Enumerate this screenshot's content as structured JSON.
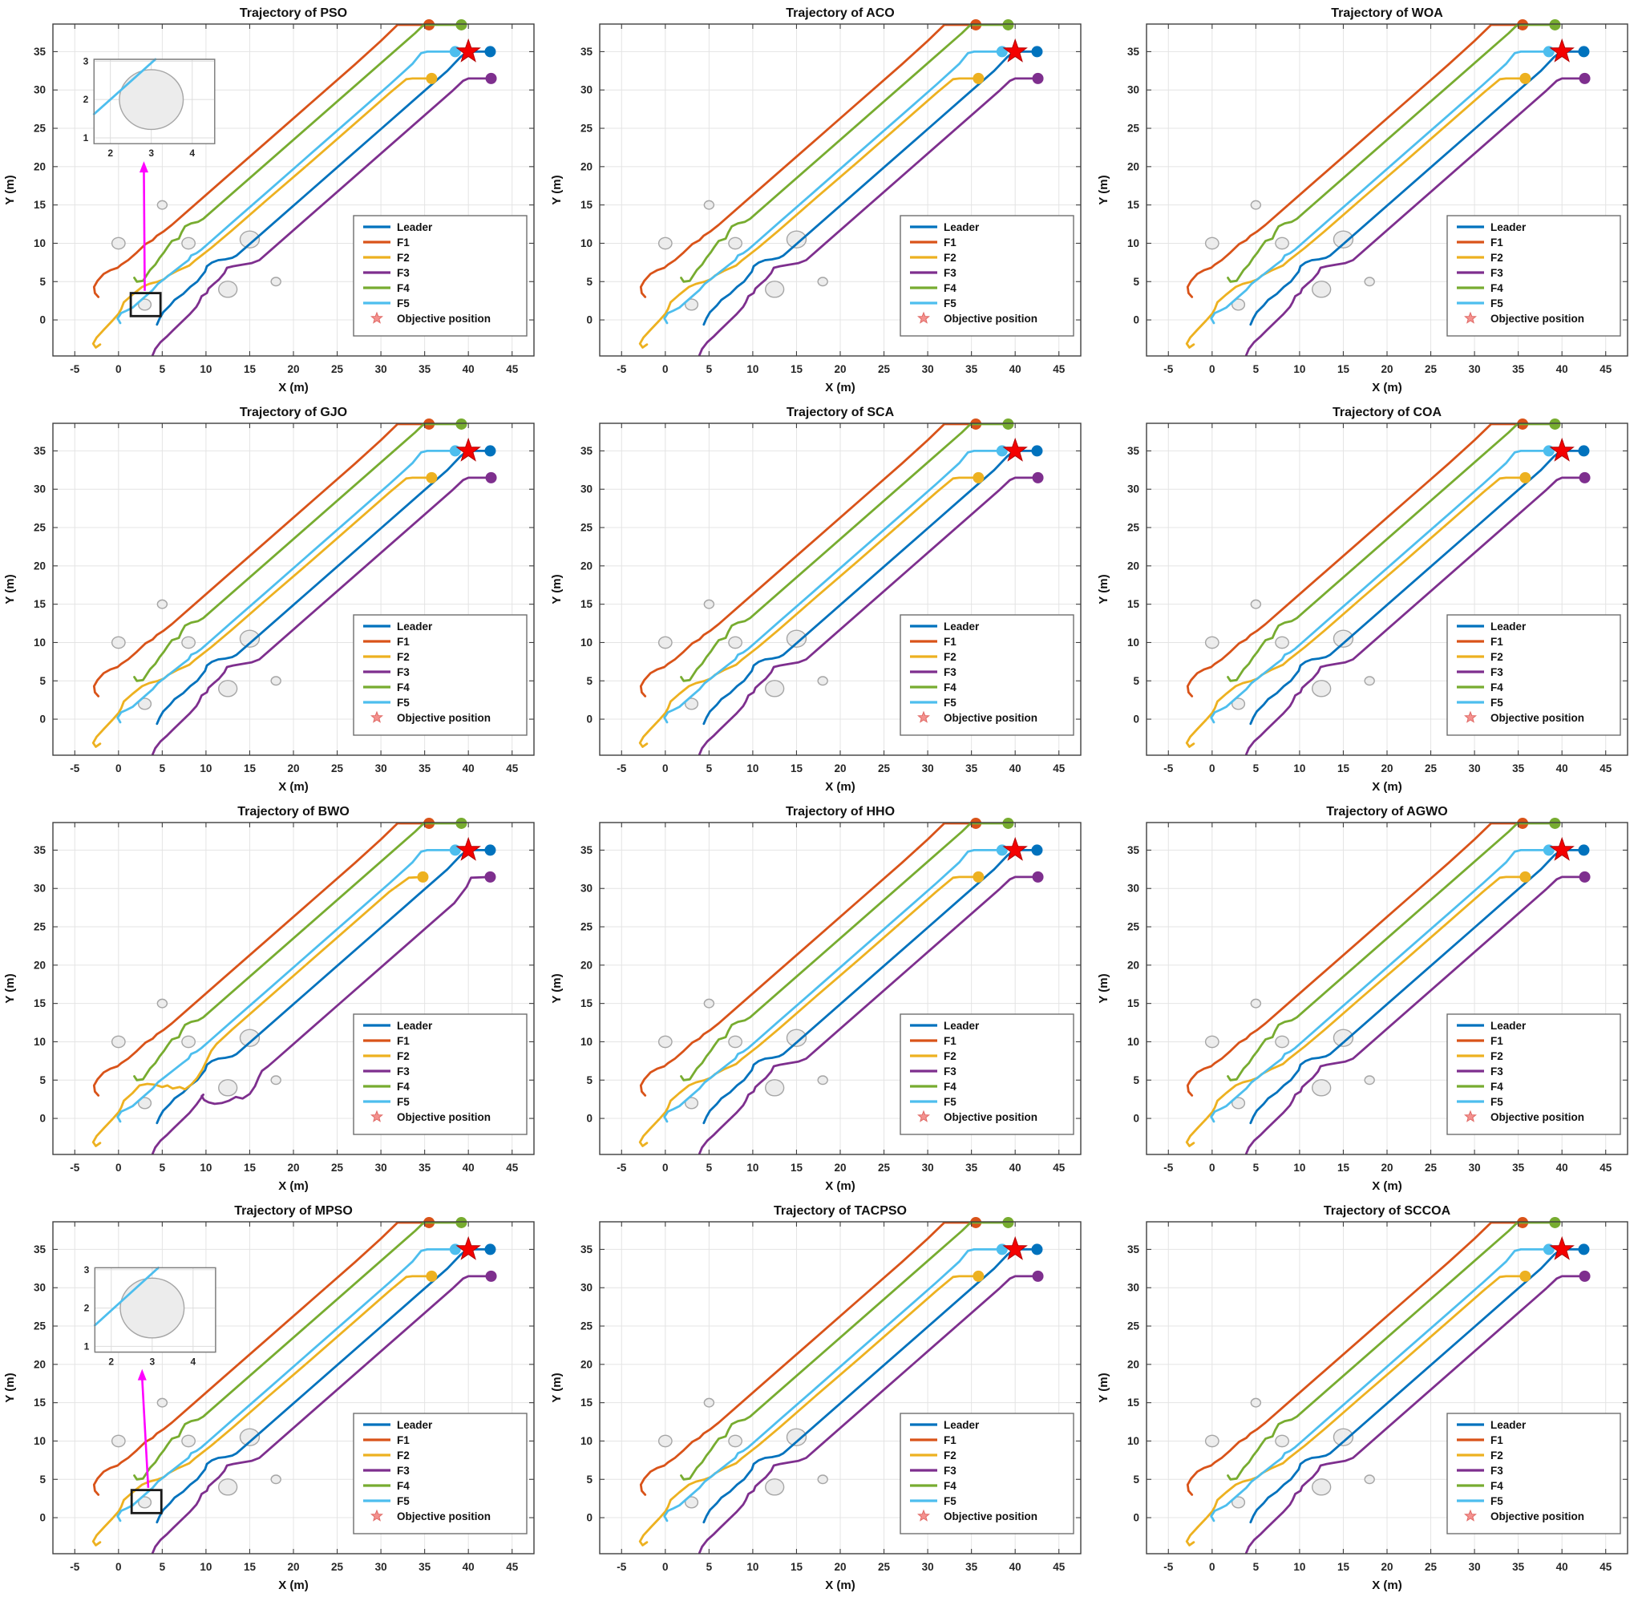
{
  "figure_name": "robot-formation-trajectory-comparison",
  "chart_data": {
    "type": "line",
    "layout": {
      "rows": 4,
      "cols": 3
    },
    "xlabel": "X (m)",
    "ylabel": "Y (m)",
    "xlim": [
      -7.5,
      47.5
    ],
    "ylim": [
      -4.7,
      38.6
    ],
    "xticks": [
      -5,
      0,
      5,
      10,
      15,
      20,
      25,
      30,
      35,
      40,
      45
    ],
    "yticks": [
      0,
      5,
      10,
      15,
      20,
      25,
      30,
      35
    ],
    "grid": true,
    "subplots": [
      {
        "title": "Trajectory of PSO",
        "inset": "pso"
      },
      {
        "title": "Trajectory of ACO"
      },
      {
        "title": "Trajectory of WOA"
      },
      {
        "title": "Trajectory of GJO"
      },
      {
        "title": "Trajectory of SCA"
      },
      {
        "title": "Trajectory of COA"
      },
      {
        "title": "Trajectory of BWO",
        "overrides": {
          "F2": [
            [
              -2.1,
              -3.2
            ],
            [
              -2.6,
              -3.6
            ],
            [
              -2.9,
              -3.1
            ],
            [
              -2.5,
              -2.3
            ],
            [
              -1.7,
              -1.3
            ],
            [
              -0.7,
              -0.1
            ],
            [
              0.0,
              0.8
            ],
            [
              0.3,
              1.4
            ],
            [
              0.6,
              2.3
            ],
            [
              1.6,
              3.3
            ],
            [
              2.4,
              4.3
            ],
            [
              3.3,
              4.5
            ],
            [
              4.2,
              4.4
            ],
            [
              5.0,
              4.1
            ],
            [
              5.6,
              4.3
            ],
            [
              6.2,
              3.9
            ],
            [
              7.0,
              4.1
            ],
            [
              7.6,
              3.8
            ],
            [
              8.3,
              4.4
            ],
            [
              9.0,
              5.3
            ],
            [
              9.6,
              6.4
            ],
            [
              10.1,
              7.6
            ],
            [
              10.6,
              8.8
            ],
            [
              11.2,
              9.7
            ],
            [
              13.0,
              11.6
            ],
            [
              17.0,
              15.6
            ],
            [
              22.0,
              20.6
            ],
            [
              27.0,
              25.6
            ],
            [
              31.0,
              29.6
            ],
            [
              33.2,
              31.4
            ],
            [
              34.8,
              31.5
            ]
          ],
          "F3": [
            [
              3.9,
              -4.6
            ],
            [
              4.2,
              -3.8
            ],
            [
              4.8,
              -2.9
            ],
            [
              5.5,
              -2.2
            ],
            [
              6.2,
              -1.4
            ],
            [
              7.1,
              -0.4
            ],
            [
              8.1,
              0.7
            ],
            [
              8.9,
              1.8
            ],
            [
              9.4,
              2.6
            ],
            [
              9.7,
              3.1
            ],
            [
              9.5,
              2.9
            ],
            [
              9.8,
              2.4
            ],
            [
              10.3,
              2.1
            ],
            [
              11.0,
              1.9
            ],
            [
              11.8,
              2.0
            ],
            [
              12.6,
              2.3
            ],
            [
              13.4,
              2.8
            ],
            [
              14.2,
              2.6
            ],
            [
              15.0,
              3.2
            ],
            [
              15.6,
              4.2
            ],
            [
              16.0,
              5.3
            ],
            [
              16.4,
              6.2
            ],
            [
              17.1,
              6.8
            ],
            [
              18.1,
              7.8
            ],
            [
              20.0,
              9.7
            ],
            [
              25.0,
              14.7
            ],
            [
              30.0,
              19.7
            ],
            [
              35.0,
              24.7
            ],
            [
              38.4,
              28.1
            ],
            [
              39.8,
              30.2
            ],
            [
              40.3,
              31.4
            ],
            [
              42.5,
              31.5
            ]
          ]
        }
      },
      {
        "title": "Trajectory of HHO"
      },
      {
        "title": "Trajectory of AGWO"
      },
      {
        "title": "Trajectory of MPSO",
        "inset": "mpso"
      },
      {
        "title": "Trajectory of TACPSO"
      },
      {
        "title": "Trajectory of SCCOA"
      }
    ],
    "series": [
      {
        "name": "Leader",
        "color": "#0072BD",
        "points": [
          [
            4.4,
            -0.6
          ],
          [
            4.7,
            0.2
          ],
          [
            5.1,
            1.0
          ],
          [
            5.9,
            1.9
          ],
          [
            6.4,
            2.6
          ],
          [
            7.4,
            3.4
          ],
          [
            8.2,
            4.3
          ],
          [
            9.0,
            5.0
          ],
          [
            9.4,
            5.6
          ],
          [
            9.9,
            6.3
          ],
          [
            10.1,
            7.0
          ],
          [
            10.7,
            7.5
          ],
          [
            11.4,
            7.8
          ],
          [
            12.2,
            7.9
          ],
          [
            13.0,
            8.1
          ],
          [
            13.5,
            8.4
          ],
          [
            14.2,
            9.1
          ],
          [
            16.0,
            10.9
          ],
          [
            20.0,
            14.9
          ],
          [
            25.0,
            19.9
          ],
          [
            30.0,
            24.9
          ],
          [
            34.0,
            28.9
          ],
          [
            37.6,
            32.5
          ],
          [
            39.1,
            34.3
          ],
          [
            39.9,
            35.0
          ],
          [
            42.5,
            35.0
          ]
        ]
      },
      {
        "name": "F1",
        "color": "#D95319",
        "points": [
          [
            -2.3,
            3.0
          ],
          [
            -2.7,
            3.5
          ],
          [
            -2.8,
            4.3
          ],
          [
            -2.4,
            5.1
          ],
          [
            -1.7,
            6.0
          ],
          [
            -0.9,
            6.5
          ],
          [
            -0.1,
            6.8
          ],
          [
            0.3,
            7.2
          ],
          [
            1.1,
            7.8
          ],
          [
            2.1,
            8.8
          ],
          [
            3.1,
            9.9
          ],
          [
            3.9,
            10.4
          ],
          [
            4.4,
            11.0
          ],
          [
            5.1,
            11.5
          ],
          [
            6.1,
            12.4
          ],
          [
            8.0,
            14.3
          ],
          [
            12.0,
            18.3
          ],
          [
            17.0,
            23.3
          ],
          [
            22.0,
            28.3
          ],
          [
            27.0,
            33.3
          ],
          [
            30.0,
            36.4
          ],
          [
            31.9,
            38.5
          ],
          [
            35.5,
            38.5
          ]
        ]
      },
      {
        "name": "F2",
        "color": "#EDB120",
        "points": [
          [
            -2.1,
            -3.2
          ],
          [
            -2.6,
            -3.6
          ],
          [
            -2.9,
            -3.1
          ],
          [
            -2.5,
            -2.3
          ],
          [
            -1.7,
            -1.3
          ],
          [
            -0.7,
            -0.1
          ],
          [
            0.0,
            0.8
          ],
          [
            0.3,
            1.4
          ],
          [
            0.6,
            2.3
          ],
          [
            1.6,
            3.3
          ],
          [
            2.7,
            4.3
          ],
          [
            3.5,
            4.7
          ],
          [
            4.5,
            5.0
          ],
          [
            5.2,
            5.3
          ],
          [
            5.7,
            5.8
          ],
          [
            6.7,
            6.4
          ],
          [
            7.3,
            6.7
          ],
          [
            8.1,
            7.1
          ],
          [
            8.7,
            7.7
          ],
          [
            10.6,
            9.4
          ],
          [
            13.0,
            11.7
          ],
          [
            17.0,
            15.7
          ],
          [
            22.0,
            20.6
          ],
          [
            27.0,
            25.6
          ],
          [
            31.0,
            29.6
          ],
          [
            32.9,
            31.4
          ],
          [
            33.6,
            31.5
          ],
          [
            35.8,
            31.5
          ]
        ]
      },
      {
        "name": "F3",
        "color": "#7E2F8E",
        "points": [
          [
            3.9,
            -4.6
          ],
          [
            4.2,
            -3.8
          ],
          [
            4.8,
            -2.9
          ],
          [
            5.5,
            -2.2
          ],
          [
            6.2,
            -1.4
          ],
          [
            7.1,
            -0.4
          ],
          [
            8.1,
            0.7
          ],
          [
            8.9,
            1.7
          ],
          [
            9.2,
            2.3
          ],
          [
            9.5,
            3.1
          ],
          [
            10.1,
            3.5
          ],
          [
            10.3,
            4.1
          ],
          [
            10.9,
            4.7
          ],
          [
            11.5,
            5.3
          ],
          [
            12.1,
            6.1
          ],
          [
            12.4,
            6.8
          ],
          [
            13.1,
            7.0
          ],
          [
            14.1,
            7.2
          ],
          [
            15.2,
            7.4
          ],
          [
            16.1,
            7.8
          ],
          [
            17.1,
            8.8
          ],
          [
            20.0,
            11.7
          ],
          [
            25.0,
            16.7
          ],
          [
            30.0,
            21.7
          ],
          [
            35.0,
            26.7
          ],
          [
            38.1,
            29.8
          ],
          [
            39.4,
            31.2
          ],
          [
            40.0,
            31.5
          ],
          [
            42.6,
            31.5
          ]
        ]
      },
      {
        "name": "F4",
        "color": "#77AC30",
        "points": [
          [
            1.8,
            5.5
          ],
          [
            2.1,
            5.0
          ],
          [
            2.8,
            5.1
          ],
          [
            3.2,
            5.8
          ],
          [
            3.6,
            6.5
          ],
          [
            4.2,
            7.2
          ],
          [
            4.7,
            8.1
          ],
          [
            5.2,
            8.8
          ],
          [
            5.6,
            9.5
          ],
          [
            6.1,
            10.3
          ],
          [
            6.9,
            10.6
          ],
          [
            7.2,
            11.4
          ],
          [
            7.6,
            12.2
          ],
          [
            8.3,
            12.6
          ],
          [
            9.1,
            12.8
          ],
          [
            9.7,
            13.2
          ],
          [
            10.6,
            14.1
          ],
          [
            13.0,
            16.5
          ],
          [
            17.0,
            20.5
          ],
          [
            22.0,
            25.5
          ],
          [
            27.0,
            30.5
          ],
          [
            31.0,
            34.5
          ],
          [
            33.9,
            37.4
          ],
          [
            34.9,
            38.5
          ],
          [
            39.2,
            38.5
          ]
        ]
      },
      {
        "name": "F5",
        "color": "#4DBEEE",
        "points": [
          [
            0.2,
            -0.4
          ],
          [
            -0.1,
            0.2
          ],
          [
            0.3,
            0.9
          ],
          [
            0.9,
            1.2
          ],
          [
            1.6,
            1.6
          ],
          [
            2.3,
            2.3
          ],
          [
            3.1,
            3.1
          ],
          [
            3.9,
            3.9
          ],
          [
            4.5,
            4.7
          ],
          [
            5.3,
            5.4
          ],
          [
            6.3,
            6.3
          ],
          [
            7.3,
            7.2
          ],
          [
            8.0,
            7.8
          ],
          [
            8.3,
            8.4
          ],
          [
            8.9,
            8.7
          ],
          [
            9.5,
            9.2
          ],
          [
            10.4,
            10.1
          ],
          [
            13.0,
            12.7
          ],
          [
            17.0,
            16.7
          ],
          [
            22.0,
            21.7
          ],
          [
            27.0,
            26.7
          ],
          [
            31.0,
            30.7
          ],
          [
            33.6,
            33.4
          ],
          [
            34.6,
            34.8
          ],
          [
            35.3,
            35.0
          ],
          [
            38.5,
            35.0
          ]
        ]
      }
    ],
    "objective": {
      "x": 40,
      "y": 35,
      "label": "Objective position",
      "color": "#F40000"
    },
    "obstacles": [
      {
        "x": 5.0,
        "y": 15.0,
        "r": 0.55
      },
      {
        "x": 0.0,
        "y": 10.0,
        "r": 0.75
      },
      {
        "x": 8.0,
        "y": 10.0,
        "r": 0.75
      },
      {
        "x": 15.0,
        "y": 10.5,
        "r": 1.1
      },
      {
        "x": 12.5,
        "y": 4.0,
        "r": 1.05
      },
      {
        "x": 18.0,
        "y": 5.0,
        "r": 0.55
      },
      {
        "x": 3.0,
        "y": 2.0,
        "r": 0.72
      }
    ],
    "insets": {
      "pso": {
        "box": {
          "x0": -2.8,
          "x1": 11.0,
          "y0": 23.0,
          "y1": 34.0
        },
        "xlim": [
          1.6,
          4.55
        ],
        "ylim": [
          0.85,
          3.05
        ],
        "xticks": [
          2,
          3,
          4
        ],
        "yticks": [
          1,
          2,
          3
        ],
        "circle": {
          "x": 3.0,
          "y": 2.0,
          "r": 0.78
        },
        "line": [
          [
            1.6,
            1.62
          ],
          [
            3.1,
            3.05
          ]
        ],
        "highlight": {
          "x0": 1.4,
          "y0": 0.5,
          "x1": 4.8,
          "y1": 3.5
        },
        "arrow": {
          "from": [
            3.0,
            3.8
          ],
          "to": [
            2.9,
            20.7
          ]
        }
      },
      "mpso": {
        "box": {
          "x0": -2.7,
          "x1": 11.1,
          "y0": 21.6,
          "y1": 32.6
        },
        "xlim": [
          1.6,
          4.55
        ],
        "ylim": [
          0.85,
          3.05
        ],
        "xticks": [
          2,
          3,
          4
        ],
        "yticks": [
          1,
          2,
          3
        ],
        "circle": {
          "x": 3.0,
          "y": 2.0,
          "r": 0.78
        },
        "line": [
          [
            1.6,
            1.55
          ],
          [
            3.15,
            3.05
          ]
        ],
        "highlight": {
          "x0": 1.5,
          "y0": 0.6,
          "x1": 4.9,
          "y1": 3.6
        },
        "arrow": {
          "from": [
            3.4,
            3.9
          ],
          "to": [
            2.7,
            19.4
          ]
        }
      }
    },
    "style": {
      "background": "#ffffff",
      "grid_color": "#e4e4e4",
      "axis_color": "#3f3f3f",
      "tick_text_color": "#262626",
      "title_color": "#111111",
      "obstacle_fill": "#ececec",
      "obstacle_stroke": "#a6a6a6",
      "legend_border": "#6e6e6e",
      "legend_star_fill": "#f4918e",
      "legend_star_stroke": "#e06a66",
      "arrow_color": "#ff00ff",
      "highlight_color": "#1a1a1a"
    }
  }
}
